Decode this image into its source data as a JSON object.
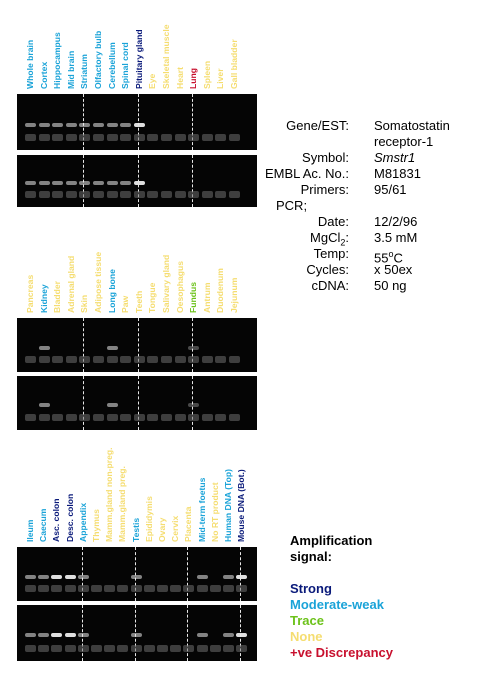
{
  "colors": {
    "strong": "#0a1a7a",
    "moderate": "#1aa3d8",
    "trace": "#6cc21a",
    "none": "#f5dd70",
    "discrepancy": "#c8102e"
  },
  "gels": [
    {
      "labels": [
        {
          "text": "Whole brain",
          "signal": "moderate"
        },
        {
          "text": "Cortex",
          "signal": "moderate"
        },
        {
          "text": "Hippocampus",
          "signal": "moderate"
        },
        {
          "text": "Mid brain",
          "signal": "moderate"
        },
        {
          "text": "Striatum",
          "signal": "moderate"
        },
        {
          "text": "Olfactory bulb",
          "signal": "moderate"
        },
        {
          "text": "Cerebellum",
          "signal": "moderate"
        },
        {
          "text": "Spinal cord",
          "signal": "moderate"
        },
        {
          "text": "Pituitary gland",
          "signal": "strong"
        },
        {
          "text": "Eye",
          "signal": "none"
        },
        {
          "text": "Skeletal muscle",
          "signal": "none"
        },
        {
          "text": "Heart",
          "signal": "none"
        },
        {
          "text": "Lung",
          "signal": "discrepancy"
        },
        {
          "text": "Spleen",
          "signal": "none"
        },
        {
          "text": "Liver",
          "signal": "none"
        },
        {
          "text": "Gall bladder",
          "signal": "none"
        }
      ]
    },
    {
      "labels": [
        {
          "text": "Pancreas",
          "signal": "none"
        },
        {
          "text": "Kidney",
          "signal": "moderate"
        },
        {
          "text": "Bladder",
          "signal": "none"
        },
        {
          "text": "Adrenal gland",
          "signal": "none"
        },
        {
          "text": "Skin",
          "signal": "none"
        },
        {
          "text": "Adipose tissue",
          "signal": "none"
        },
        {
          "text": "Long bone",
          "signal": "moderate"
        },
        {
          "text": "Paw",
          "signal": "none"
        },
        {
          "text": "Teeth",
          "signal": "none"
        },
        {
          "text": "Tongue",
          "signal": "none"
        },
        {
          "text": "Salivary gland",
          "signal": "none"
        },
        {
          "text": "Oesophagus",
          "signal": "none"
        },
        {
          "text": "Fundus",
          "signal": "trace"
        },
        {
          "text": "Antrum",
          "signal": "none"
        },
        {
          "text": "Duodenum",
          "signal": "none"
        },
        {
          "text": "Jejunum",
          "signal": "none"
        }
      ]
    },
    {
      "labels": [
        {
          "text": "Ileum",
          "signal": "moderate"
        },
        {
          "text": "Caecum",
          "signal": "moderate"
        },
        {
          "text": "Asc. colon",
          "signal": "strong"
        },
        {
          "text": "Desc. colon",
          "signal": "strong"
        },
        {
          "text": "Appendix",
          "signal": "moderate"
        },
        {
          "text": "Thymus",
          "signal": "none"
        },
        {
          "text": "Mamm.gland non-preg.",
          "signal": "none"
        },
        {
          "text": "Mamm.gland preg.",
          "signal": "none"
        },
        {
          "text": "Testis",
          "signal": "moderate"
        },
        {
          "text": "Epididymis",
          "signal": "none"
        },
        {
          "text": "Ovary",
          "signal": "none"
        },
        {
          "text": "Cervix",
          "signal": "none"
        },
        {
          "text": "Placenta",
          "signal": "none"
        },
        {
          "text": "Mid-term foetus",
          "signal": "moderate"
        },
        {
          "text": "No RT product",
          "signal": "none"
        },
        {
          "text": "Human DNA (Top)",
          "signal": "moderate"
        },
        {
          "text": "Mouse DNA (Bot.)",
          "signal": "strong"
        }
      ]
    }
  ],
  "info": {
    "gene_key": "Gene/EST:",
    "gene_val_1": "Somatostatin",
    "gene_val_2": "receptor-1",
    "symbol_key": "Symbol:",
    "symbol_val": "Smstr1",
    "embl_key": "EMBL Ac. No.:",
    "embl_val": "M81831",
    "primers_key": "Primers:",
    "primers_val": "95/61",
    "pcr_label": "PCR;",
    "date_key": "Date:",
    "date_val": "12/2/96",
    "mgcl2_key_main": "MgCl",
    "mgcl2_key_sub": "2",
    "mgcl2_key_colon": ":",
    "mgcl2_val": "3.5 mM",
    "temp_key": "Temp:",
    "temp_val_num": "55",
    "temp_val_sup": "o",
    "temp_val_unit": "C",
    "cycles_key": "Cycles:",
    "cycles_val": "x 50ex",
    "cdna_key": "cDNA:",
    "cdna_val": "50 ng"
  },
  "legend": {
    "title_1": "Amplification",
    "title_2": "signal:",
    "strong": "Strong",
    "moderate": "Moderate-weak",
    "trace": "Trace",
    "none": "None",
    "discrepancy": "+ve Discrepancy"
  }
}
